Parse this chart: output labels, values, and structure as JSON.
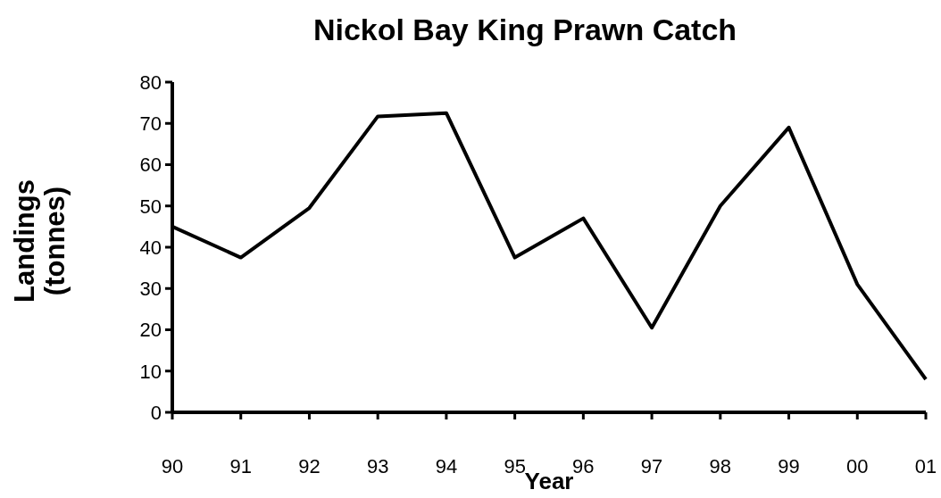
{
  "chart_data": {
    "type": "line",
    "title": "Nickol Bay King Prawn Catch",
    "xlabel": "Year",
    "ylabel": "Landings (tonnes)",
    "categories": [
      "90",
      "91",
      "92",
      "93",
      "94",
      "95",
      "96",
      "97",
      "98",
      "99",
      "00",
      "01"
    ],
    "series": [
      {
        "color": "#000000",
        "values": [
          45,
          37.5,
          49.5,
          71.7,
          72.5,
          37.5,
          47,
          20.5,
          50,
          69,
          31,
          8
        ]
      }
    ],
    "ylim": [
      0,
      80
    ],
    "yticks": [
      0,
      10,
      20,
      30,
      40,
      50,
      60,
      70,
      80
    ],
    "grid": false,
    "legend": false,
    "marker": "none",
    "line_style": "solid"
  }
}
